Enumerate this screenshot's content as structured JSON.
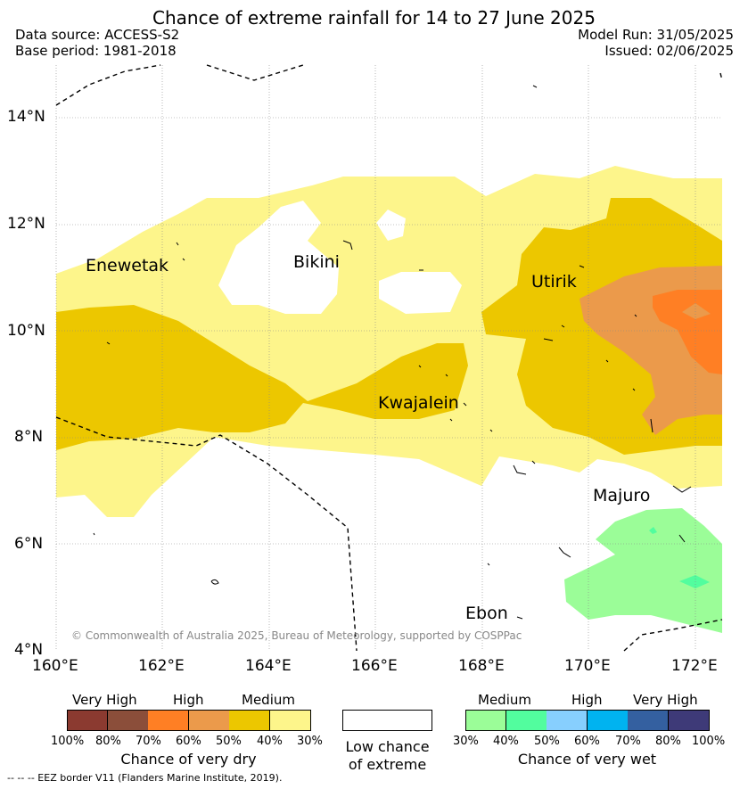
{
  "title": "Chance of extreme rainfall for 14 to 27 June 2025",
  "meta": {
    "data_source": "Data source: ACCESS-S2",
    "base_period": "Base period: 1981-2018",
    "model_run": "Model Run: 31/05/2025",
    "issued": "Issued: 02/06/2025"
  },
  "map": {
    "lat_labels": [
      "14°N",
      "12°N",
      "10°N",
      "8°N",
      "6°N",
      "4°N"
    ],
    "lon_labels": [
      "160°E",
      "162°E",
      "164°E",
      "166°E",
      "168°E",
      "170°E",
      "172°E"
    ],
    "places": {
      "enewetak": "Enewetak",
      "bikini": "Bikini",
      "utirik": "Utirik",
      "kwajalein": "Kwajalein",
      "majuro": "Majuro",
      "ebon": "Ebon"
    },
    "copyright": "© Commonwealth of Australia 2025, Bureau of Meteorology, supported by COSPPac",
    "colors": {
      "dry_30_40": "#fdf58b",
      "dry_40_50": "#ecc700",
      "dry_50_60": "#eb9a4b",
      "dry_60_70": "#ff7f24",
      "wet_30_40": "#9bfd98"
    }
  },
  "colorbar_dry": {
    "headings": [
      "Very High",
      "High",
      "Medium"
    ],
    "ticks": [
      "100%",
      "80%",
      "70%",
      "60%",
      "50%",
      "40%",
      "30%"
    ],
    "caption": "Chance of very dry",
    "colors": [
      "#8b3a30",
      "#8b4e3a",
      "#ff7f24",
      "#eb9a4b",
      "#ecc700",
      "#fdf58b"
    ]
  },
  "colorbar_low": {
    "caption_line1": "Low chance",
    "caption_line2": "of extreme"
  },
  "colorbar_wet": {
    "headings": [
      "Medium",
      "High",
      "Very High"
    ],
    "ticks": [
      "30%",
      "40%",
      "50%",
      "60%",
      "70%",
      "80%",
      "100%"
    ],
    "caption": "Chance of very wet",
    "colors": [
      "#9bfd98",
      "#52fd9e",
      "#87cffe",
      "#00b3f0",
      "#3460a0",
      "#3e3a78"
    ]
  },
  "footnote": "-- -- -- EEZ border V11 (Flanders Marine Institute, 2019)."
}
